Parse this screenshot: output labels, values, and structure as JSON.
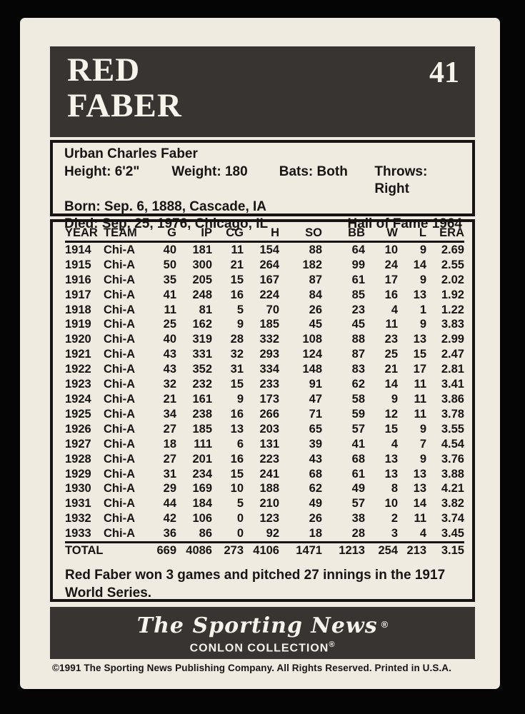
{
  "card": {
    "number": "41",
    "name_line1": "RED",
    "name_line2": "FABER",
    "bio": {
      "full_name": "Urban Charles Faber",
      "height": "Height: 6'2\"",
      "weight": "Weight: 180",
      "bats": "Bats: Both",
      "throws": "Throws: Right",
      "born": "Born: Sep. 6, 1888, Cascade, IA",
      "died": "Died: Sep. 25, 1976, Chicago, IL",
      "hall_of_fame": "Hall of Fame 1964"
    },
    "stats": {
      "columns": [
        "YEAR",
        "TEAM",
        "G",
        "IP",
        "CG",
        "H",
        "SO",
        "BB",
        "W",
        "L",
        "ERA"
      ],
      "rows": [
        [
          "1914",
          "Chi-A",
          "40",
          "181",
          "11",
          "154",
          "88",
          "64",
          "10",
          "9",
          "2.69"
        ],
        [
          "1915",
          "Chi-A",
          "50",
          "300",
          "21",
          "264",
          "182",
          "99",
          "24",
          "14",
          "2.55"
        ],
        [
          "1916",
          "Chi-A",
          "35",
          "205",
          "15",
          "167",
          "87",
          "61",
          "17",
          "9",
          "2.02"
        ],
        [
          "1917",
          "Chi-A",
          "41",
          "248",
          "16",
          "224",
          "84",
          "85",
          "16",
          "13",
          "1.92"
        ],
        [
          "1918",
          "Chi-A",
          "11",
          "81",
          "5",
          "70",
          "26",
          "23",
          "4",
          "1",
          "1.22"
        ],
        [
          "1919",
          "Chi-A",
          "25",
          "162",
          "9",
          "185",
          "45",
          "45",
          "11",
          "9",
          "3.83"
        ],
        [
          "1920",
          "Chi-A",
          "40",
          "319",
          "28",
          "332",
          "108",
          "88",
          "23",
          "13",
          "2.99"
        ],
        [
          "1921",
          "Chi-A",
          "43",
          "331",
          "32",
          "293",
          "124",
          "87",
          "25",
          "15",
          "2.47"
        ],
        [
          "1922",
          "Chi-A",
          "43",
          "352",
          "31",
          "334",
          "148",
          "83",
          "21",
          "17",
          "2.81"
        ],
        [
          "1923",
          "Chi-A",
          "32",
          "232",
          "15",
          "233",
          "91",
          "62",
          "14",
          "11",
          "3.41"
        ],
        [
          "1924",
          "Chi-A",
          "21",
          "161",
          "9",
          "173",
          "47",
          "58",
          "9",
          "11",
          "3.86"
        ],
        [
          "1925",
          "Chi-A",
          "34",
          "238",
          "16",
          "266",
          "71",
          "59",
          "12",
          "11",
          "3.78"
        ],
        [
          "1926",
          "Chi-A",
          "27",
          "185",
          "13",
          "203",
          "65",
          "57",
          "15",
          "9",
          "3.55"
        ],
        [
          "1927",
          "Chi-A",
          "18",
          "111",
          "6",
          "131",
          "39",
          "41",
          "4",
          "7",
          "4.54"
        ],
        [
          "1928",
          "Chi-A",
          "27",
          "201",
          "16",
          "223",
          "43",
          "68",
          "13",
          "9",
          "3.76"
        ],
        [
          "1929",
          "Chi-A",
          "31",
          "234",
          "15",
          "241",
          "68",
          "61",
          "13",
          "13",
          "3.88"
        ],
        [
          "1930",
          "Chi-A",
          "29",
          "169",
          "10",
          "188",
          "62",
          "49",
          "8",
          "13",
          "4.21"
        ],
        [
          "1931",
          "Chi-A",
          "44",
          "184",
          "5",
          "210",
          "49",
          "57",
          "10",
          "14",
          "3.82"
        ],
        [
          "1932",
          "Chi-A",
          "42",
          "106",
          "0",
          "123",
          "26",
          "38",
          "2",
          "11",
          "3.74"
        ],
        [
          "1933",
          "Chi-A",
          "36",
          "86",
          "0",
          "92",
          "18",
          "28",
          "3",
          "4",
          "3.45"
        ]
      ],
      "total": [
        "TOTAL",
        "",
        "669",
        "4086",
        "273",
        "4106",
        "1471",
        "1213",
        "254",
        "213",
        "3.15"
      ]
    },
    "note": "Red Faber won 3 games and pitched 27 innings in the 1917 World Series.",
    "footer": {
      "brand": "The Sporting News",
      "brand_reg": "®",
      "collection": "CONLON COLLECTION",
      "collection_reg": "®",
      "copyright": "©1991 The Sporting News Publishing Company. All Rights Reserved. Printed in U.S.A."
    },
    "colors": {
      "background": "#050505",
      "card-bg": "#efebe0",
      "panel-dark": "#373431",
      "ink": "#171513",
      "light-text": "#f5f3ea"
    }
  }
}
